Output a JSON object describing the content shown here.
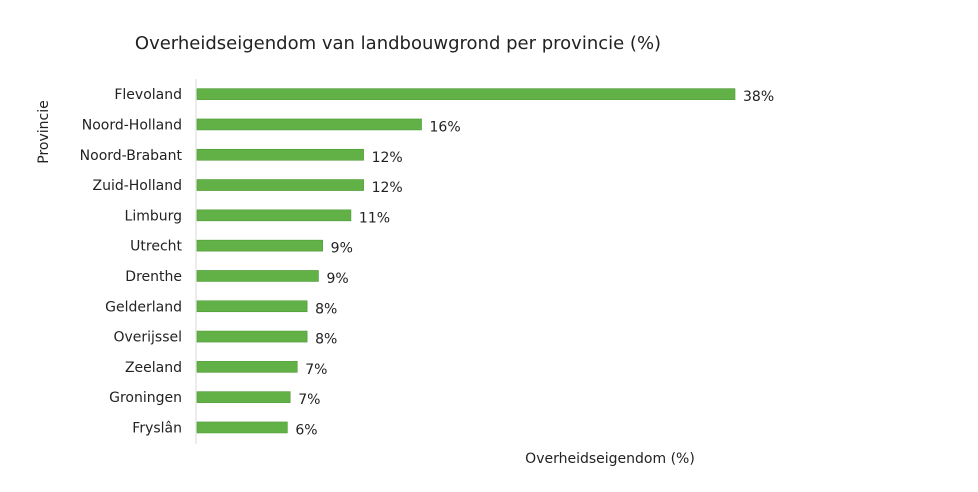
{
  "chart_data": {
    "type": "bar",
    "orientation": "horizontal",
    "title": "Overheidseigendom van landbouwgrond per provincie (%)",
    "xlabel": "Overheidseigendom (%)",
    "ylabel": "Provincie",
    "categories": [
      "Flevoland",
      "Noord-Holland",
      "Noord-Brabant",
      "Zuid-Holland",
      "Limburg",
      "Utrecht",
      "Drenthe",
      "Gelderland",
      "Overijssel",
      "Zeeland",
      "Groningen",
      "Fryslân"
    ],
    "values": [
      38,
      16,
      12,
      12,
      11,
      9,
      9,
      8,
      8,
      7,
      7,
      6
    ],
    "value_precise": [
      38.1,
      15.9,
      11.8,
      11.8,
      10.9,
      8.9,
      8.6,
      7.8,
      7.8,
      7.1,
      6.6,
      6.4
    ],
    "value_labels": [
      "38%",
      "16%",
      "12%",
      "12%",
      "11%",
      "9%",
      "9%",
      "8%",
      "8%",
      "7%",
      "7%",
      "6%"
    ],
    "xlim": [
      0,
      38.1
    ],
    "grid": false,
    "legend": "none",
    "bar_color": "#62b147"
  }
}
